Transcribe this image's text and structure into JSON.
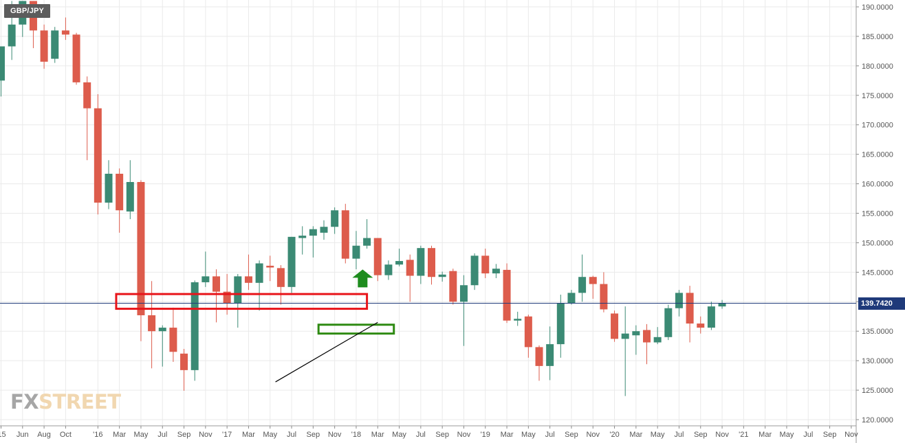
{
  "symbol": "GBP/JPY",
  "last_price": "139.7420",
  "logo": {
    "part1": "FX",
    "part2": "STREET"
  },
  "colors": {
    "up": "#3b8a74",
    "down": "#dd5c4c",
    "grid": "#eaeaea",
    "resistance_box": "#e8141a",
    "support_box": "#2e8a12",
    "arrow": "#1e8c1e",
    "price_line": "#1f3a7a",
    "trendline": "#000000"
  },
  "chart_data": {
    "type": "candlestick",
    "timeframe": "monthly",
    "title": "",
    "xlabel": "",
    "ylabel": "",
    "ylim": [
      119.5,
      191.0
    ],
    "grid": true,
    "y_ticks": [
      "190.0000",
      "185.0000",
      "180.0000",
      "175.0000",
      "170.0000",
      "165.0000",
      "160.0000",
      "155.0000",
      "150.0000",
      "145.0000",
      "140.0000",
      "135.0000",
      "130.0000",
      "125.0000",
      "120.0000"
    ],
    "x_tick_labels": [
      "'15",
      "Jun",
      "Aug",
      "Oct",
      "'16",
      "Mar",
      "May",
      "Jul",
      "Sep",
      "Nov",
      "'17",
      "Mar",
      "May",
      "Jul",
      "Sep",
      "Nov",
      "'18",
      "Mar",
      "May",
      "Jul",
      "Sep",
      "Nov",
      "'19",
      "Mar",
      "May",
      "Jul",
      "Sep",
      "Nov",
      "'20",
      "Mar",
      "May",
      "Jul",
      "Sep",
      "Nov",
      "'21",
      "Mar",
      "May",
      "Jul",
      "Sep",
      "Nov"
    ],
    "x_tick_months": [
      0,
      2,
      4,
      6,
      9,
      11,
      13,
      15,
      17,
      19,
      21,
      23,
      25,
      27,
      29,
      31,
      33,
      35,
      37,
      39,
      41,
      43,
      45,
      47,
      49,
      51,
      53,
      55,
      57,
      59,
      61,
      63,
      65,
      67,
      69,
      71,
      73,
      75,
      77,
      79
    ],
    "candles": [
      {
        "o": 177.5,
        "h": 183.0,
        "l": 174.8,
        "c": 183.3
      },
      {
        "o": 183.3,
        "h": 191.0,
        "l": 181.0,
        "c": 187.0
      },
      {
        "o": 187.0,
        "h": 191.0,
        "l": 184.9,
        "c": 191.0
      },
      {
        "o": 191.0,
        "h": 191.0,
        "l": 183.0,
        "c": 186.0
      },
      {
        "o": 186.0,
        "h": 187.0,
        "l": 179.5,
        "c": 180.7
      },
      {
        "o": 181.2,
        "h": 186.6,
        "l": 180.5,
        "c": 186.0
      },
      {
        "o": 186.0,
        "h": 188.2,
        "l": 184.4,
        "c": 185.3
      },
      {
        "o": 185.3,
        "h": 185.6,
        "l": 176.8,
        "c": 177.2
      },
      {
        "o": 177.2,
        "h": 178.2,
        "l": 164.0,
        "c": 172.8
      },
      {
        "o": 172.8,
        "h": 175.2,
        "l": 154.8,
        "c": 156.8
      },
      {
        "o": 156.8,
        "h": 164.0,
        "l": 155.7,
        "c": 161.7
      },
      {
        "o": 161.7,
        "h": 162.6,
        "l": 151.7,
        "c": 155.5
      },
      {
        "o": 155.3,
        "h": 164.0,
        "l": 154.0,
        "c": 160.3
      },
      {
        "o": 160.3,
        "h": 160.6,
        "l": 133.3,
        "c": 137.7
      },
      {
        "o": 137.7,
        "h": 143.5,
        "l": 128.7,
        "c": 135.0
      },
      {
        "o": 135.0,
        "h": 136.0,
        "l": 129.0,
        "c": 135.6
      },
      {
        "o": 135.6,
        "h": 139.0,
        "l": 129.8,
        "c": 131.5
      },
      {
        "o": 131.2,
        "h": 132.0,
        "l": 124.9,
        "c": 128.4
      },
      {
        "o": 128.4,
        "h": 143.6,
        "l": 126.6,
        "c": 143.3
      },
      {
        "o": 143.3,
        "h": 148.5,
        "l": 142.5,
        "c": 144.3
      },
      {
        "o": 144.3,
        "h": 145.5,
        "l": 136.5,
        "c": 141.7
      },
      {
        "o": 141.7,
        "h": 144.7,
        "l": 137.8,
        "c": 139.7
      },
      {
        "o": 139.7,
        "h": 144.7,
        "l": 135.6,
        "c": 144.3
      },
      {
        "o": 144.3,
        "h": 148.0,
        "l": 142.0,
        "c": 143.2
      },
      {
        "o": 143.2,
        "h": 147.0,
        "l": 138.5,
        "c": 146.5
      },
      {
        "o": 146.1,
        "h": 147.8,
        "l": 143.5,
        "c": 145.8
      },
      {
        "o": 145.7,
        "h": 146.2,
        "l": 139.5,
        "c": 142.5
      },
      {
        "o": 142.5,
        "h": 151.0,
        "l": 141.5,
        "c": 151.0
      },
      {
        "o": 150.8,
        "h": 152.8,
        "l": 148.0,
        "c": 151.2
      },
      {
        "o": 151.2,
        "h": 152.8,
        "l": 147.5,
        "c": 152.3
      },
      {
        "o": 151.7,
        "h": 153.8,
        "l": 150.5,
        "c": 152.7
      },
      {
        "o": 152.7,
        "h": 156.0,
        "l": 151.5,
        "c": 155.5
      },
      {
        "o": 155.5,
        "h": 156.6,
        "l": 146.5,
        "c": 147.3
      },
      {
        "o": 147.3,
        "h": 152.0,
        "l": 145.5,
        "c": 149.5
      },
      {
        "o": 149.5,
        "h": 154.0,
        "l": 149.0,
        "c": 150.8
      },
      {
        "o": 150.8,
        "h": 150.8,
        "l": 143.5,
        "c": 144.5
      },
      {
        "o": 144.5,
        "h": 147.0,
        "l": 143.7,
        "c": 146.3
      },
      {
        "o": 146.3,
        "h": 149.0,
        "l": 146.0,
        "c": 146.9
      },
      {
        "o": 147.1,
        "h": 148.0,
        "l": 140.0,
        "c": 144.4
      },
      {
        "o": 144.4,
        "h": 149.5,
        "l": 143.0,
        "c": 149.1
      },
      {
        "o": 149.1,
        "h": 149.5,
        "l": 142.9,
        "c": 144.2
      },
      {
        "o": 144.2,
        "h": 145.1,
        "l": 143.4,
        "c": 144.6
      },
      {
        "o": 145.2,
        "h": 145.6,
        "l": 139.5,
        "c": 140.0
      },
      {
        "o": 140.0,
        "h": 144.5,
        "l": 132.5,
        "c": 142.8
      },
      {
        "o": 142.8,
        "h": 148.2,
        "l": 142.0,
        "c": 147.8
      },
      {
        "o": 147.8,
        "h": 149.0,
        "l": 144.0,
        "c": 144.8
      },
      {
        "o": 144.8,
        "h": 146.4,
        "l": 144.0,
        "c": 145.6
      },
      {
        "o": 145.4,
        "h": 146.5,
        "l": 136.4,
        "c": 136.8
      },
      {
        "o": 136.8,
        "h": 138.3,
        "l": 135.9,
        "c": 137.1
      },
      {
        "o": 137.5,
        "h": 137.8,
        "l": 130.5,
        "c": 132.3
      },
      {
        "o": 132.3,
        "h": 132.6,
        "l": 126.6,
        "c": 129.1
      },
      {
        "o": 129.1,
        "h": 135.8,
        "l": 126.7,
        "c": 132.8
      },
      {
        "o": 132.8,
        "h": 141.2,
        "l": 130.5,
        "c": 139.8
      },
      {
        "o": 139.8,
        "h": 142.0,
        "l": 139.5,
        "c": 141.5
      },
      {
        "o": 141.5,
        "h": 148.0,
        "l": 140.0,
        "c": 144.2
      },
      {
        "o": 144.2,
        "h": 144.4,
        "l": 140.5,
        "c": 143.0
      },
      {
        "o": 143.0,
        "h": 145.0,
        "l": 138.2,
        "c": 138.7
      },
      {
        "o": 138.0,
        "h": 138.5,
        "l": 133.2,
        "c": 133.7
      },
      {
        "o": 133.7,
        "h": 139.2,
        "l": 124.0,
        "c": 134.6
      },
      {
        "o": 134.3,
        "h": 136.0,
        "l": 131.0,
        "c": 135.0
      },
      {
        "o": 135.2,
        "h": 136.2,
        "l": 129.4,
        "c": 133.1
      },
      {
        "o": 133.1,
        "h": 135.7,
        "l": 132.8,
        "c": 134.0
      },
      {
        "o": 134.0,
        "h": 139.5,
        "l": 133.5,
        "c": 138.9
      },
      {
        "o": 138.9,
        "h": 142.0,
        "l": 137.5,
        "c": 141.5
      },
      {
        "o": 141.5,
        "h": 142.7,
        "l": 133.1,
        "c": 136.3
      },
      {
        "o": 136.3,
        "h": 137.5,
        "l": 134.6,
        "c": 135.6
      },
      {
        "o": 135.6,
        "h": 140.0,
        "l": 135.2,
        "c": 139.2
      },
      {
        "o": 139.2,
        "h": 140.3,
        "l": 138.8,
        "c": 139.74
      }
    ],
    "annotations": [
      {
        "type": "rectangle",
        "name": "resistance-zone",
        "x0": 10.7,
        "x1": 34.0,
        "y0": 138.8,
        "y1": 141.3
      },
      {
        "type": "rectangle",
        "name": "support-zone",
        "x0": 29.5,
        "x1": 36.5,
        "y0": 134.6,
        "y1": 136.1
      },
      {
        "type": "trendline",
        "x0": 25.5,
        "y0": 126.4,
        "x1": 35.0,
        "y1": 136.5
      },
      {
        "type": "arrow-up",
        "x": 33.6,
        "y": 144.3
      }
    ],
    "last_price_line": 139.742
  }
}
